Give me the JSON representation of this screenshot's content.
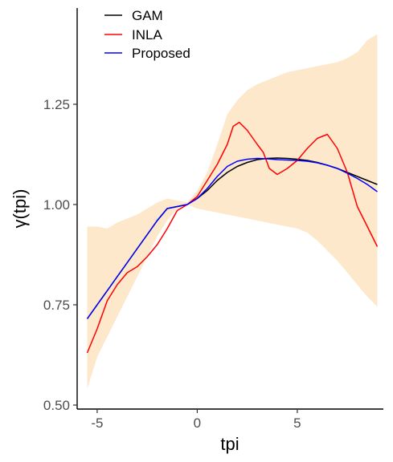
{
  "chart_data": {
    "type": "line",
    "xlabel": "tpi",
    "ylabel": "γ(tpi)",
    "xlim": [
      -6.0,
      9.3
    ],
    "ylim": [
      0.49,
      1.49
    ],
    "x_ticks": [
      -5,
      0,
      5
    ],
    "x_tick_labels": [
      "-5",
      "0",
      "5"
    ],
    "y_ticks": [
      0.5,
      0.75,
      1.0,
      1.25
    ],
    "y_tick_labels": [
      "0.50",
      "0.75",
      "1.00",
      "1.25"
    ],
    "grid": false,
    "legend_position": "top-left",
    "band": {
      "color": "#FDE8CC",
      "x": [
        -5.5,
        -5.0,
        -4.5,
        -4.0,
        -3.5,
        -3.0,
        -2.5,
        -2.0,
        -1.5,
        -1.0,
        -0.5,
        0.0,
        0.5,
        1.0,
        1.5,
        2.0,
        2.5,
        3.0,
        3.5,
        4.0,
        4.5,
        5.0,
        5.5,
        6.0,
        6.5,
        7.0,
        7.5,
        8.0,
        8.5,
        9.0
      ],
      "lower": [
        0.54,
        0.62,
        0.67,
        0.72,
        0.77,
        0.82,
        0.87,
        0.92,
        0.96,
        0.99,
        1.0,
        0.99,
        0.985,
        0.98,
        0.975,
        0.97,
        0.965,
        0.96,
        0.955,
        0.95,
        0.945,
        0.94,
        0.93,
        0.91,
        0.885,
        0.86,
        0.83,
        0.8,
        0.77,
        0.745
      ],
      "upper": [
        0.945,
        0.945,
        0.94,
        0.955,
        0.965,
        0.975,
        0.99,
        1.005,
        1.015,
        1.01,
        1.005,
        1.035,
        1.08,
        1.15,
        1.225,
        1.26,
        1.285,
        1.3,
        1.31,
        1.32,
        1.33,
        1.335,
        1.34,
        1.345,
        1.35,
        1.355,
        1.365,
        1.38,
        1.41,
        1.425
      ]
    },
    "series": [
      {
        "name": "GAM",
        "color": "#000000",
        "x": [
          -5.5,
          -5.0,
          -4.5,
          -4.0,
          -3.5,
          -3.0,
          -2.5,
          -2.0,
          -1.5,
          -1.0,
          -0.5,
          0.0,
          0.5,
          1.0,
          1.5,
          2.0,
          2.5,
          3.0,
          3.5,
          4.0,
          4.5,
          5.0,
          5.5,
          6.0,
          6.5,
          7.0,
          7.5,
          8.0,
          8.5,
          9.0
        ],
        "y": [
          0.715,
          0.75,
          0.785,
          0.82,
          0.855,
          0.89,
          0.925,
          0.96,
          0.99,
          0.995,
          1.0,
          1.015,
          1.035,
          1.06,
          1.08,
          1.095,
          1.105,
          1.112,
          1.115,
          1.116,
          1.115,
          1.113,
          1.11,
          1.105,
          1.098,
          1.09,
          1.08,
          1.07,
          1.06,
          1.05
        ]
      },
      {
        "name": "INLA",
        "color": "#FF0000",
        "x": [
          -5.5,
          -5.0,
          -4.5,
          -4.0,
          -3.5,
          -3.0,
          -2.5,
          -2.0,
          -1.5,
          -1.0,
          -0.5,
          0.0,
          0.5,
          1.0,
          1.5,
          1.8,
          2.1,
          2.5,
          3.0,
          3.3,
          3.6,
          4.0,
          4.5,
          5.0,
          5.5,
          6.0,
          6.5,
          7.0,
          7.5,
          8.0,
          8.5,
          9.0
        ],
        "y": [
          0.63,
          0.69,
          0.76,
          0.8,
          0.83,
          0.845,
          0.87,
          0.9,
          0.94,
          0.985,
          1.0,
          1.02,
          1.06,
          1.1,
          1.15,
          1.195,
          1.205,
          1.185,
          1.15,
          1.13,
          1.09,
          1.075,
          1.09,
          1.11,
          1.14,
          1.165,
          1.175,
          1.14,
          1.08,
          0.995,
          0.945,
          0.895
        ]
      },
      {
        "name": "Proposed",
        "color": "#0000FF",
        "x": [
          -5.5,
          -5.0,
          -4.5,
          -4.0,
          -3.5,
          -3.0,
          -2.5,
          -2.0,
          -1.5,
          -1.0,
          -0.5,
          0.0,
          0.5,
          1.0,
          1.5,
          2.0,
          2.5,
          3.0,
          3.5,
          4.0,
          4.5,
          5.0,
          5.5,
          6.0,
          6.5,
          7.0,
          7.5,
          8.0,
          8.5,
          9.0
        ],
        "y": [
          0.715,
          0.75,
          0.785,
          0.82,
          0.855,
          0.89,
          0.925,
          0.96,
          0.99,
          0.995,
          1.0,
          1.015,
          1.04,
          1.07,
          1.095,
          1.108,
          1.113,
          1.115,
          1.114,
          1.112,
          1.111,
          1.11,
          1.108,
          1.104,
          1.098,
          1.09,
          1.078,
          1.065,
          1.05,
          1.032
        ]
      }
    ]
  }
}
